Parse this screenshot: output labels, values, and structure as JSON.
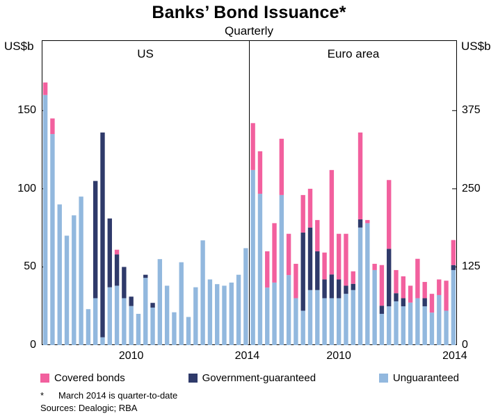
{
  "title": "Banks’ Bond Issuance*",
  "subtitle": "Quarterly",
  "axis": {
    "left_unit": "US$b",
    "right_unit": "US$b",
    "left_ticks": [
      0,
      50,
      100,
      150
    ],
    "right_ticks": [
      0,
      125,
      250,
      375
    ],
    "left_max": 195,
    "right_max": 487.5,
    "x_labels": [
      "2010",
      "2014"
    ]
  },
  "legend": [
    {
      "key": "covered",
      "label": "Covered bonds",
      "color": "#f2609e"
    },
    {
      "key": "government",
      "label": "Government-guaranteed",
      "color": "#2f3a6a"
    },
    {
      "key": "unguaranteed",
      "label": "Unguaranteed",
      "color": "#92b8de"
    }
  ],
  "footnote_marker": "*",
  "footnote_text": "March 2014 is quarter-to-date",
  "sources": "Sources: Dealogic; RBA",
  "chart_data": {
    "type": "bar",
    "stacked": true,
    "title": "Banks’ Bond Issuance* — Quarterly",
    "ylabel_left": "US$b",
    "ylabel_right": "US$b",
    "grid": false,
    "legend_position": "bottom",
    "panels": [
      {
        "name": "US",
        "axis_side": "left",
        "ylim": [
          0,
          195
        ],
        "quarters": [
          "2007Q1",
          "2007Q2",
          "2007Q3",
          "2007Q4",
          "2008Q1",
          "2008Q2",
          "2008Q3",
          "2008Q4",
          "2009Q1",
          "2009Q2",
          "2009Q3",
          "2009Q4",
          "2010Q1",
          "2010Q2",
          "2010Q3",
          "2010Q4",
          "2011Q1",
          "2011Q2",
          "2011Q3",
          "2011Q4",
          "2012Q1",
          "2012Q2",
          "2012Q3",
          "2012Q4",
          "2013Q1",
          "2013Q2",
          "2013Q3",
          "2013Q4",
          "2014Q1"
        ],
        "series": [
          {
            "name": "Unguaranteed",
            "key": "unguaranteed",
            "values": [
              160,
              135,
              90,
              70,
              83,
              95,
              23,
              30,
              5,
              37,
              38,
              30,
              25,
              20,
              43,
              24,
              55,
              38,
              21,
              53,
              18,
              37,
              67,
              42,
              39,
              38,
              40,
              45,
              62
            ]
          },
          {
            "name": "Government-guaranteed",
            "key": "government",
            "values": [
              0,
              0,
              0,
              0,
              0,
              0,
              0,
              75,
              131,
              44,
              20,
              20,
              6,
              0,
              2,
              3,
              0,
              0,
              0,
              0,
              0,
              0,
              0,
              0,
              0,
              0,
              0,
              0,
              0
            ]
          },
          {
            "name": "Covered bonds",
            "key": "covered",
            "values": [
              8,
              10,
              0,
              0,
              0,
              0,
              0,
              0,
              0,
              0,
              3,
              0,
              0,
              0,
              0,
              0,
              0,
              0,
              0,
              0,
              0,
              0,
              0,
              0,
              0,
              0,
              0,
              0,
              0
            ]
          }
        ]
      },
      {
        "name": "Euro area",
        "axis_side": "right",
        "ylim": [
          0,
          487.5
        ],
        "quarters": [
          "2007Q1",
          "2007Q2",
          "2007Q3",
          "2007Q4",
          "2008Q1",
          "2008Q2",
          "2008Q3",
          "2008Q4",
          "2009Q1",
          "2009Q2",
          "2009Q3",
          "2009Q4",
          "2010Q1",
          "2010Q2",
          "2010Q3",
          "2010Q4",
          "2011Q1",
          "2011Q2",
          "2011Q3",
          "2011Q4",
          "2012Q1",
          "2012Q2",
          "2012Q3",
          "2012Q4",
          "2013Q1",
          "2013Q2",
          "2013Q3",
          "2013Q4",
          "2014Q1"
        ],
        "series": [
          {
            "name": "Unguaranteed",
            "key": "unguaranteed",
            "values": [
              280,
              242,
              92,
              100,
              240,
              112,
              75,
              55,
              88,
              88,
              75,
              75,
              75,
              82,
              88,
              188,
              195,
              120,
              50,
              62,
              70,
              62,
              68,
              75,
              62,
              52,
              80,
              55,
              120
            ]
          },
          {
            "name": "Government-guaranteed",
            "key": "government",
            "values": [
              0,
              0,
              0,
              0,
              0,
              0,
              0,
              125,
              100,
              62,
              30,
              38,
              30,
              13,
              10,
              13,
              0,
              0,
              13,
              92,
              13,
              13,
              0,
              0,
              13,
              0,
              0,
              0,
              8
            ]
          },
          {
            "name": "Covered bonds",
            "key": "covered",
            "values": [
              75,
              68,
              58,
              95,
              90,
              66,
              55,
              60,
              62,
              50,
              43,
              167,
              73,
              83,
              20,
              139,
              5,
              10,
              65,
              110,
              37,
              35,
              27,
              63,
              26,
              30,
              25,
              48,
              40
            ]
          }
        ]
      }
    ]
  }
}
